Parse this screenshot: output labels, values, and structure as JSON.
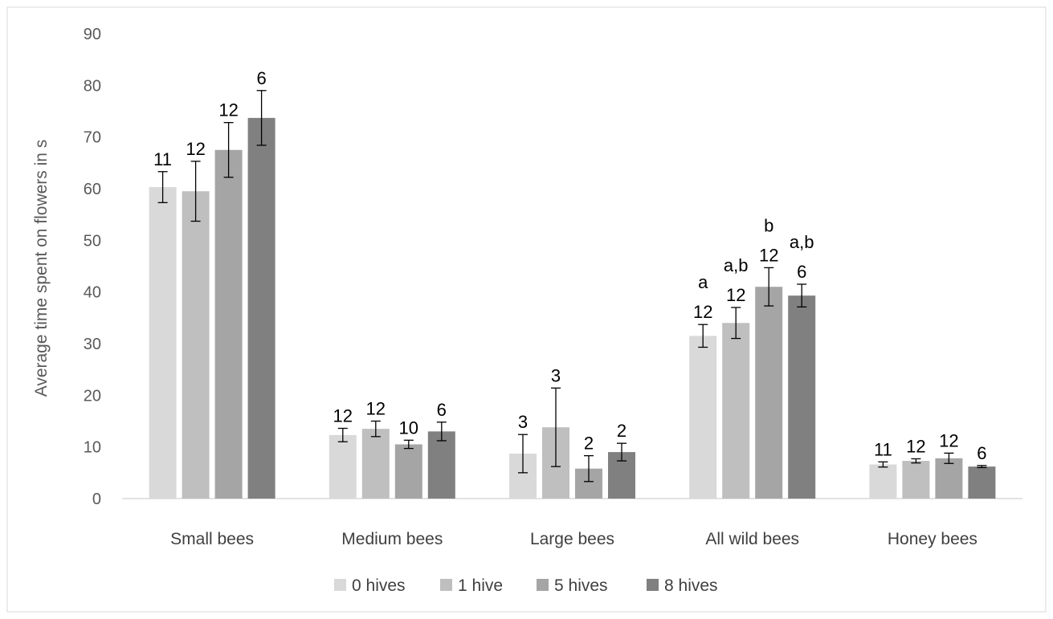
{
  "chart_data": {
    "type": "bar",
    "ylabel": "Average time spent on flowers in s",
    "ylim": [
      0,
      90
    ],
    "yticks": [
      0,
      10,
      20,
      30,
      40,
      50,
      60,
      70,
      80,
      90
    ],
    "grid": false,
    "legend_position": "bottom",
    "categories": [
      "Small bees",
      "Medium bees",
      "Large bees",
      "All wild bees",
      "Honey bees"
    ],
    "series": [
      {
        "name": "0 hives",
        "color": "#d9d9d9",
        "values": [
          60.3,
          12.3,
          8.7,
          31.5,
          6.6
        ],
        "errors": [
          3.0,
          1.3,
          3.7,
          2.2,
          0.5
        ],
        "labels": [
          "11",
          "12",
          "3",
          "12",
          "11"
        ],
        "sig": [
          "",
          "",
          "",
          "a",
          ""
        ]
      },
      {
        "name": "1 hive",
        "color": "#bfbfbf",
        "values": [
          59.5,
          13.5,
          13.8,
          34.0,
          7.3
        ],
        "errors": [
          5.8,
          1.5,
          7.6,
          3.0,
          0.4
        ],
        "labels": [
          "12",
          "12",
          "3",
          "12",
          "12"
        ],
        "sig": [
          "",
          "",
          "",
          "a,b",
          ""
        ]
      },
      {
        "name": "5 hives",
        "color": "#a5a5a5",
        "values": [
          67.5,
          10.5,
          5.8,
          41.0,
          7.8
        ],
        "errors": [
          5.3,
          0.8,
          2.5,
          3.7,
          1.0
        ],
        "labels": [
          "12",
          "10",
          "2",
          "12",
          "12"
        ],
        "sig": [
          "",
          "",
          "",
          "b",
          ""
        ]
      },
      {
        "name": "8 hives",
        "color": "#808080",
        "values": [
          73.7,
          13.0,
          9.0,
          39.3,
          6.2
        ],
        "errors": [
          5.3,
          1.8,
          1.7,
          2.2,
          0.2
        ],
        "labels": [
          "6",
          "6",
          "2",
          "6",
          "6"
        ],
        "sig": [
          "",
          "",
          "",
          "a,b",
          ""
        ]
      }
    ]
  }
}
